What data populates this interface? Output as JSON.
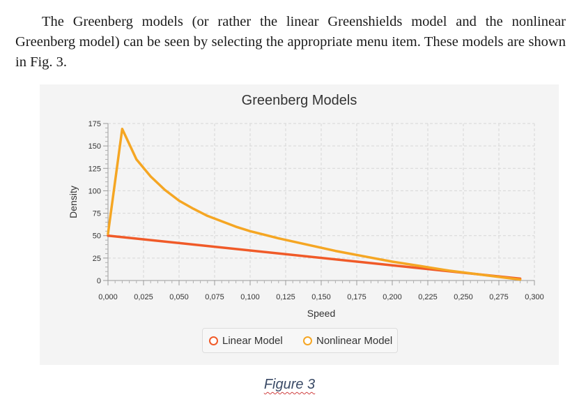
{
  "document": {
    "paragraph": "The Greenberg models (or rather the linear Greenshields model and the nonlinear Greenberg model) can be seen by selecting the appropriate menu item. These models are shown in Fig. 3.",
    "caption": "Figure 3"
  },
  "chart_data": {
    "type": "line",
    "title": "Greenberg Models",
    "xlabel": "Speed",
    "ylabel": "Density",
    "xlim": [
      0,
      0.3
    ],
    "ylim": [
      0,
      175
    ],
    "x_ticks": [
      "0,000",
      "0,025",
      "0,050",
      "0,075",
      "0,100",
      "0,125",
      "0,150",
      "0,175",
      "0,200",
      "0,225",
      "0,250",
      "0,275",
      "0,300"
    ],
    "y_ticks": [
      "0",
      "25",
      "50",
      "75",
      "100",
      "125",
      "150",
      "175"
    ],
    "grid": true,
    "legend_position": "bottom",
    "series": [
      {
        "name": "Linear Model",
        "color": "#f05a28",
        "points": [
          [
            0,
            50
          ],
          [
            0.29,
            2
          ]
        ]
      },
      {
        "name": "Nonlinear Model",
        "color": "#f5a623",
        "points": [
          [
            0,
            52
          ],
          [
            0.01,
            169
          ],
          [
            0.02,
            135
          ],
          [
            0.03,
            116
          ],
          [
            0.04,
            101
          ],
          [
            0.05,
            89
          ],
          [
            0.06,
            80
          ],
          [
            0.07,
            72
          ],
          [
            0.08,
            66
          ],
          [
            0.09,
            60
          ],
          [
            0.1,
            55
          ],
          [
            0.12,
            47
          ],
          [
            0.14,
            40
          ],
          [
            0.16,
            33
          ],
          [
            0.18,
            27
          ],
          [
            0.2,
            21
          ],
          [
            0.22,
            16
          ],
          [
            0.24,
            11
          ],
          [
            0.26,
            7
          ],
          [
            0.28,
            3
          ],
          [
            0.29,
            1
          ]
        ]
      }
    ]
  }
}
